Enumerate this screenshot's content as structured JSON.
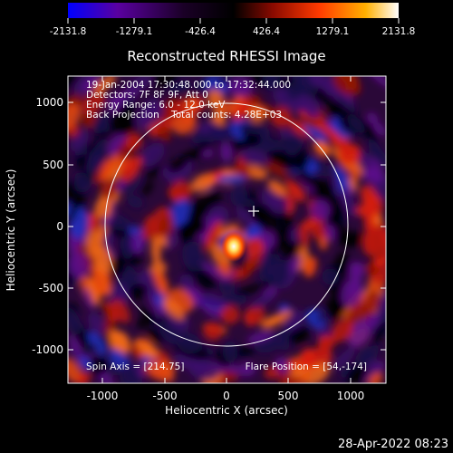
{
  "colorbar": {
    "ticks": [
      "-2131.8",
      "-1279.1",
      "-426.4",
      "426.4",
      "1279.1",
      "2131.8"
    ],
    "stops": [
      "#0000ff",
      "#5a00a0",
      "#1a0026",
      "#000000",
      "#8a0a00",
      "#ff3a00",
      "#ffb000",
      "#ffffff"
    ]
  },
  "title": "Reconstructed RHESSI Image",
  "info_lines": [
    "19-Jan-2004 17:30:48.000 to 17:32:44.000",
    "Detectors: 7F 8F 9F, Att 0",
    "Energy Range: 6.0 - 12.0 keV",
    "Back Projection    Total counts: 4.28E+03"
  ],
  "footer": {
    "spin_axis": "Spin Axis = [214.75]",
    "flare_position": "Flare Position = [54,-174]"
  },
  "axes": {
    "xlabel": "Heliocentric X (arcsec)",
    "ylabel": "Heliocentric Y (arcsec)",
    "xticks": [
      "-1000",
      "-500",
      "0",
      "500",
      "1000"
    ],
    "yticks": [
      "1000",
      "500",
      "0",
      "-500",
      "-1000"
    ]
  },
  "timestamp": "28-Apr-2022 08:23"
}
